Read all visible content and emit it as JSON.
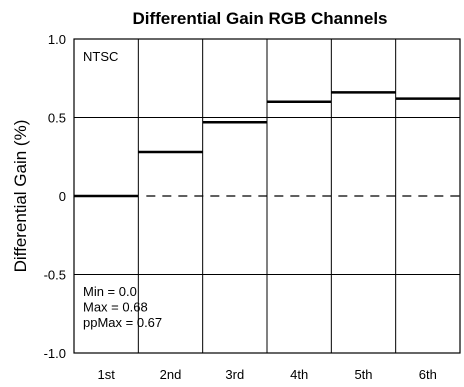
{
  "chart_data": {
    "type": "line",
    "title": "Differential Gain RGB Channels",
    "ylabel": "Differential Gain (%)",
    "xlabel": "",
    "categories": [
      "1st",
      "2nd",
      "3rd",
      "4th",
      "5th",
      "6th"
    ],
    "series": [
      {
        "values": [
          0.0,
          0.28,
          0.47,
          0.6,
          0.66,
          0.62
        ]
      }
    ],
    "ylim": [
      -1.0,
      1.0
    ],
    "yticks": [
      1.0,
      0.5,
      0,
      -0.5,
      -1.0
    ],
    "ytick_labels": [
      "1.0",
      "0.5",
      "0",
      "-0.5",
      "-1.0"
    ],
    "grid": true,
    "zero_line": "dashed",
    "annotations": {
      "standard": "NTSC",
      "stats": [
        "Min = 0.0",
        "Max = 0.68",
        "ppMax = 0.67"
      ]
    }
  }
}
